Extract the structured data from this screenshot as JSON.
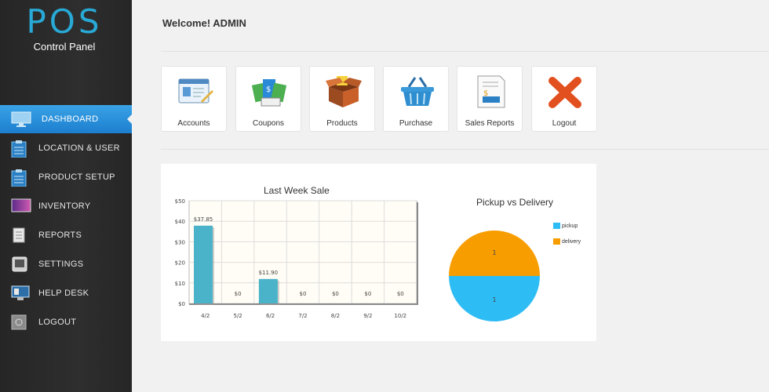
{
  "sidebar": {
    "logo_text": "POS",
    "logo_sub": "Control Panel",
    "items": [
      {
        "label": "DASHBOARD",
        "icon": "monitor-icon"
      },
      {
        "label": "LOCATION & USER",
        "icon": "clipboard-icon"
      },
      {
        "label": "PRODUCT SETUP",
        "icon": "clipboard-icon"
      },
      {
        "label": "INVENTORY",
        "icon": "image-icon"
      },
      {
        "label": "REPORTS",
        "icon": "document-icon"
      },
      {
        "label": "SETTINGS",
        "icon": "device-icon"
      },
      {
        "label": "HELP DESK",
        "icon": "computer-icon"
      },
      {
        "label": "LOGOUT",
        "icon": "safe-icon"
      }
    ]
  },
  "header": {
    "welcome": "Welcome! ADMIN"
  },
  "tiles": [
    {
      "label": "Accounts",
      "icon": "accounts-icon"
    },
    {
      "label": "Coupons",
      "icon": "coupons-icon"
    },
    {
      "label": "Products",
      "icon": "products-box-icon"
    },
    {
      "label": "Purchase",
      "icon": "basket-icon"
    },
    {
      "label": "Sales Reports",
      "icon": "sales-report-icon"
    },
    {
      "label": "Logout",
      "icon": "logout-x-icon"
    }
  ],
  "colors": {
    "accent": "#28a9d6",
    "bar": "#4ab3c9",
    "pickup": "#2ebcf5",
    "delivery": "#f79d00"
  },
  "chart_data": [
    {
      "type": "bar",
      "title": "Last Week Sale",
      "categories": [
        "4/2",
        "5/2",
        "6/2",
        "7/2",
        "8/2",
        "9/2",
        "10/2"
      ],
      "values": [
        37.85,
        0,
        11.9,
        0,
        0,
        0,
        0
      ],
      "data_labels": [
        "$37.85",
        "$0",
        "$11.90",
        "$0",
        "$0",
        "$0",
        "$0"
      ],
      "yticks": [
        "$0",
        "$10",
        "$20",
        "$30",
        "$40",
        "$50"
      ],
      "ylim": [
        0,
        50
      ],
      "grid": true
    },
    {
      "type": "pie",
      "title": "Pickup vs Delivery",
      "labels": [
        "pickup",
        "delivery"
      ],
      "values": [
        1,
        1
      ],
      "legend": "right"
    }
  ]
}
